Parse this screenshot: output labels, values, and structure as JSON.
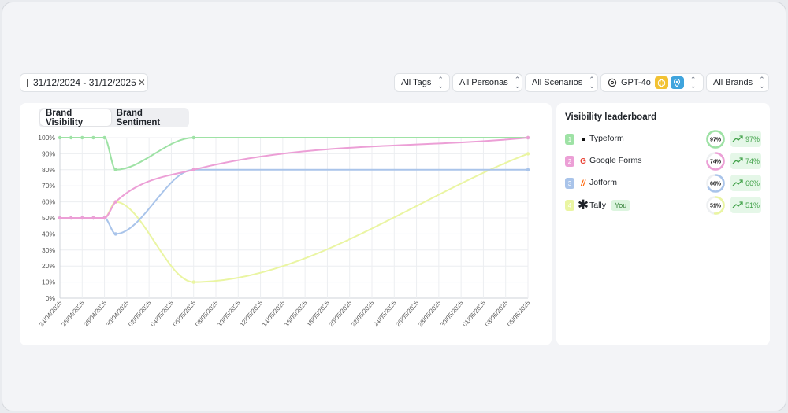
{
  "filters": {
    "date_range": "31/12/2024 - 31/12/2025",
    "tags": "All Tags",
    "personas": "All Personas",
    "scenarios": "All Scenarios",
    "model": "GPT-4o",
    "brands": "All Brands"
  },
  "tabs": [
    "Brand Visibility",
    "Brand Sentiment"
  ],
  "leaderboard": {
    "title": "Visibility leaderboard",
    "you_label": "You",
    "rows": [
      {
        "rank": "1",
        "name": "Typeform",
        "percent": "97%",
        "trend": "97%",
        "value": 0.97,
        "color": "#9ee2a5",
        "icon": "typeform-icon"
      },
      {
        "rank": "2",
        "name": "Google Forms",
        "percent": "74%",
        "trend": "74%",
        "value": 0.74,
        "color": "#ec9fd6",
        "icon": "google-forms-icon"
      },
      {
        "rank": "3",
        "name": "Jotform",
        "percent": "66%",
        "trend": "66%",
        "value": 0.66,
        "color": "#a9c4ea",
        "icon": "jotform-icon"
      },
      {
        "rank": "4",
        "name": "Tally",
        "percent": "51%",
        "trend": "51%",
        "value": 0.51,
        "color": "#eaf5a2",
        "icon": "tally-icon"
      }
    ]
  },
  "chart_data": {
    "type": "line",
    "ylim": [
      0,
      100
    ],
    "y_ticks": [
      "0%",
      "10%",
      "20%",
      "30%",
      "40%",
      "50%",
      "60%",
      "70%",
      "80%",
      "90%",
      "100%"
    ],
    "x_ticks": [
      "24/04/2025",
      "26/04/2025",
      "28/04/2025",
      "30/04/2025",
      "02/05/2025",
      "04/05/2025",
      "06/05/2025",
      "08/05/2025",
      "10/05/2025",
      "12/05/2025",
      "14/05/2025",
      "16/05/2025",
      "18/05/2025",
      "20/05/2025",
      "22/05/2025",
      "24/05/2025",
      "26/05/2025",
      "28/05/2025",
      "30/05/2025",
      "01/06/2025",
      "03/06/2025",
      "05/06/2025"
    ],
    "grid": true,
    "series": [
      {
        "color": "#9ee2a5",
        "points": [
          [
            "24/04/2025",
            100
          ],
          [
            "25/04/2025",
            100
          ],
          [
            "26/04/2025",
            100
          ],
          [
            "27/04/2025",
            100
          ],
          [
            "28/04/2025",
            100
          ],
          [
            "29/04/2025",
            80
          ],
          [
            "06/05/2025",
            100
          ],
          [
            "05/06/2025",
            100
          ]
        ]
      },
      {
        "color": "#ec9fd6",
        "points": [
          [
            "24/04/2025",
            50
          ],
          [
            "25/04/2025",
            50
          ],
          [
            "26/04/2025",
            50
          ],
          [
            "27/04/2025",
            50
          ],
          [
            "28/04/2025",
            50
          ],
          [
            "29/04/2025",
            60
          ],
          [
            "06/05/2025",
            80
          ],
          [
            "05/06/2025",
            100
          ]
        ]
      },
      {
        "color": "#a9c4ea",
        "points": [
          [
            "24/04/2025",
            50
          ],
          [
            "25/04/2025",
            50
          ],
          [
            "26/04/2025",
            50
          ],
          [
            "27/04/2025",
            50
          ],
          [
            "28/04/2025",
            50
          ],
          [
            "29/04/2025",
            40
          ],
          [
            "06/05/2025",
            80
          ],
          [
            "05/06/2025",
            80
          ]
        ]
      },
      {
        "color": "#eaf5a2",
        "points": [
          [
            "24/04/2025",
            50
          ],
          [
            "25/04/2025",
            50
          ],
          [
            "26/04/2025",
            50
          ],
          [
            "27/04/2025",
            50
          ],
          [
            "28/04/2025",
            50
          ],
          [
            "29/04/2025",
            60
          ],
          [
            "06/05/2025",
            10
          ],
          [
            "05/06/2025",
            90
          ]
        ]
      }
    ]
  }
}
